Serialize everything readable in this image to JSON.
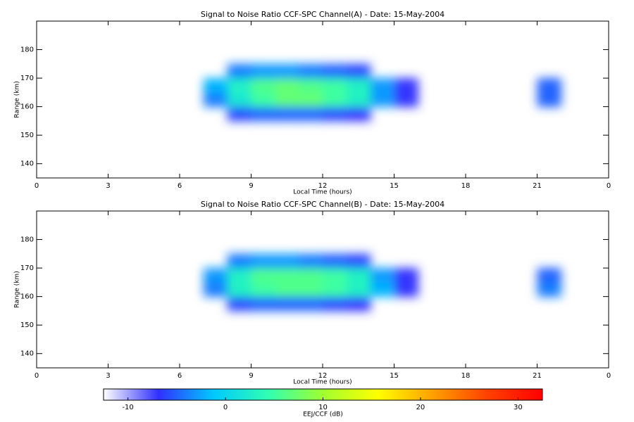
{
  "chart_data": [
    {
      "type": "heatmap",
      "title": "Signal to Noise Ratio CCF-SPC Channel(A) - Date: 15-May-2004",
      "xlabel": "Local Time (hours)",
      "ylabel": "Range (km)",
      "xlim": [
        0,
        24
      ],
      "ylim": [
        135,
        190
      ],
      "xticks": [
        0,
        3,
        6,
        9,
        12,
        15,
        18,
        21,
        {
          "value": 24,
          "label": "0"
        }
      ],
      "yticks": [
        140,
        150,
        160,
        170,
        180
      ],
      "xbins": [
        0,
        1,
        2,
        3,
        4,
        5,
        6,
        7,
        8,
        9,
        10,
        11,
        12,
        13,
        14,
        15,
        16,
        17,
        18,
        19,
        20,
        21,
        22,
        23,
        24
      ],
      "ybins": [
        135,
        140,
        145,
        150,
        155,
        160,
        165,
        170,
        175,
        180,
        185,
        190
      ],
      "z": [
        [
          null,
          null,
          null,
          null,
          null,
          null,
          null,
          null,
          null,
          null,
          null,
          null,
          null,
          null,
          null,
          null,
          null,
          null,
          null,
          null,
          null,
          null,
          null,
          null
        ],
        [
          null,
          null,
          null,
          null,
          null,
          null,
          null,
          null,
          null,
          null,
          null,
          null,
          null,
          null,
          null,
          null,
          null,
          null,
          null,
          null,
          null,
          null,
          null,
          null
        ],
        [
          null,
          null,
          null,
          null,
          null,
          null,
          null,
          null,
          null,
          null,
          null,
          null,
          null,
          null,
          null,
          null,
          null,
          null,
          null,
          null,
          null,
          null,
          null,
          null
        ],
        [
          null,
          null,
          null,
          null,
          null,
          null,
          null,
          null,
          null,
          null,
          null,
          null,
          null,
          null,
          null,
          null,
          null,
          null,
          null,
          null,
          null,
          null,
          null,
          null
        ],
        [
          null,
          null,
          null,
          null,
          null,
          null,
          null,
          null,
          -6,
          -5,
          -5,
          -5,
          -6,
          -7,
          null,
          null,
          null,
          null,
          null,
          null,
          null,
          null,
          null,
          null
        ],
        [
          null,
          null,
          null,
          null,
          null,
          null,
          null,
          -4,
          2,
          5,
          7,
          7,
          5,
          3,
          -3,
          -7,
          null,
          null,
          null,
          null,
          null,
          -5,
          null,
          null
        ],
        [
          null,
          null,
          null,
          null,
          null,
          null,
          null,
          -2,
          3,
          6,
          7,
          6,
          5,
          3,
          -3,
          -7,
          null,
          null,
          null,
          null,
          null,
          -5,
          null,
          null
        ],
        [
          null,
          null,
          null,
          null,
          null,
          null,
          null,
          null,
          -4,
          -3,
          -3,
          -4,
          -5,
          -6,
          null,
          null,
          null,
          null,
          null,
          null,
          null,
          null,
          null,
          null
        ],
        [
          null,
          null,
          null,
          null,
          null,
          null,
          null,
          null,
          null,
          null,
          null,
          null,
          null,
          null,
          null,
          null,
          null,
          null,
          null,
          null,
          null,
          null,
          null,
          null
        ],
        [
          null,
          null,
          null,
          null,
          null,
          null,
          null,
          null,
          null,
          null,
          null,
          null,
          null,
          null,
          null,
          null,
          null,
          null,
          null,
          null,
          null,
          null,
          null,
          null
        ],
        [
          null,
          null,
          null,
          null,
          null,
          null,
          null,
          null,
          null,
          null,
          null,
          null,
          null,
          null,
          null,
          null,
          null,
          null,
          null,
          null,
          null,
          null,
          null,
          null
        ]
      ]
    },
    {
      "type": "heatmap",
      "title": "Signal to Noise Ratio CCF-SPC Channel(B) - Date: 15-May-2004",
      "xlabel": "Local Time (hours)",
      "ylabel": "Range (km)",
      "xlim": [
        0,
        24
      ],
      "ylim": [
        135,
        190
      ],
      "xticks": [
        0,
        3,
        6,
        9,
        12,
        15,
        18,
        21,
        {
          "value": 24,
          "label": "0"
        }
      ],
      "yticks": [
        140,
        150,
        160,
        170,
        180
      ],
      "xbins": [
        0,
        1,
        2,
        3,
        4,
        5,
        6,
        7,
        8,
        9,
        10,
        11,
        12,
        13,
        14,
        15,
        16,
        17,
        18,
        19,
        20,
        21,
        22,
        23,
        24
      ],
      "ybins": [
        135,
        140,
        145,
        150,
        155,
        160,
        165,
        170,
        175,
        180,
        185,
        190
      ],
      "z": [
        [
          null,
          null,
          null,
          null,
          null,
          null,
          null,
          null,
          null,
          null,
          null,
          null,
          null,
          null,
          null,
          null,
          null,
          null,
          null,
          null,
          null,
          null,
          null,
          null
        ],
        [
          null,
          null,
          null,
          null,
          null,
          null,
          null,
          null,
          null,
          null,
          null,
          null,
          null,
          null,
          null,
          null,
          null,
          null,
          null,
          null,
          null,
          null,
          null,
          null
        ],
        [
          null,
          null,
          null,
          null,
          null,
          null,
          null,
          null,
          null,
          null,
          null,
          null,
          null,
          null,
          null,
          null,
          null,
          null,
          null,
          null,
          null,
          null,
          null,
          null
        ],
        [
          null,
          null,
          null,
          null,
          null,
          null,
          null,
          null,
          null,
          null,
          null,
          null,
          null,
          null,
          null,
          null,
          null,
          null,
          null,
          null,
          null,
          null,
          null,
          null
        ],
        [
          null,
          null,
          null,
          null,
          null,
          null,
          null,
          null,
          -6,
          -5,
          -5,
          -5,
          -6,
          -7,
          null,
          null,
          null,
          null,
          null,
          null,
          null,
          null,
          null,
          null
        ],
        [
          null,
          null,
          null,
          null,
          null,
          null,
          null,
          -4,
          3,
          5,
          6,
          6,
          5,
          3,
          -2,
          -7,
          null,
          null,
          null,
          null,
          null,
          -4,
          null,
          null
        ],
        [
          null,
          null,
          null,
          null,
          null,
          null,
          null,
          -3,
          3,
          6,
          6,
          6,
          5,
          3,
          -3,
          -7,
          null,
          null,
          null,
          null,
          null,
          -5,
          null,
          null
        ],
        [
          null,
          null,
          null,
          null,
          null,
          null,
          null,
          null,
          -4,
          -3,
          -3,
          -4,
          -5,
          -6,
          null,
          null,
          null,
          null,
          null,
          null,
          null,
          null,
          null,
          null
        ],
        [
          null,
          null,
          null,
          null,
          null,
          null,
          null,
          null,
          null,
          null,
          null,
          null,
          null,
          null,
          null,
          null,
          null,
          null,
          null,
          null,
          null,
          null,
          null,
          null
        ],
        [
          null,
          null,
          null,
          null,
          null,
          null,
          null,
          null,
          null,
          null,
          null,
          null,
          null,
          null,
          null,
          null,
          null,
          null,
          null,
          null,
          null,
          null,
          null,
          null
        ],
        [
          null,
          null,
          null,
          null,
          null,
          null,
          null,
          null,
          null,
          null,
          null,
          null,
          null,
          null,
          null,
          null,
          null,
          null,
          null,
          null,
          null,
          null,
          null,
          null
        ]
      ]
    }
  ],
  "colorbar": {
    "label": "EEJ/CCF (dB)",
    "zlim": [
      -12.5,
      32.5
    ],
    "ticks": [
      -10,
      0,
      10,
      20,
      30
    ],
    "colormap": [
      "#ffffff",
      "#3030ff",
      "#00c8ff",
      "#30ffb0",
      "#a0ff30",
      "#ffff00",
      "#ffa000",
      "#ff4000",
      "#ff0000"
    ]
  }
}
